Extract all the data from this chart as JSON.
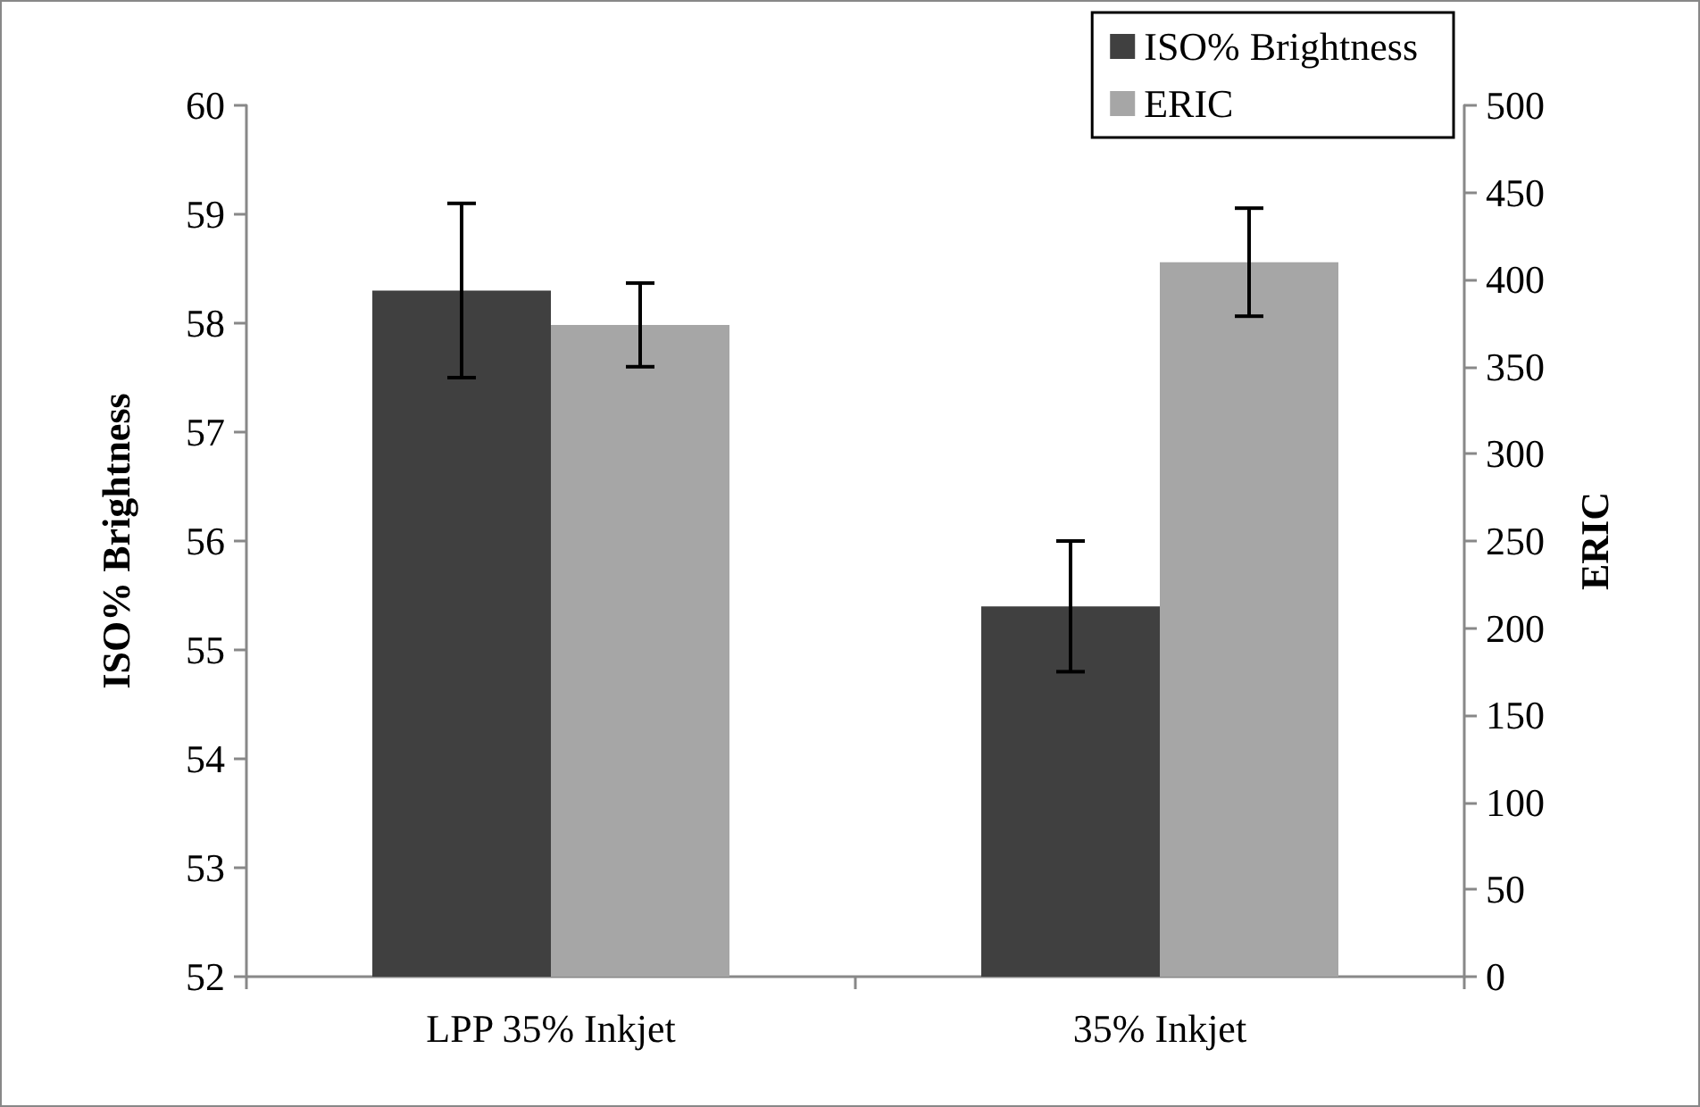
{
  "chart_data": {
    "type": "bar",
    "ylabel": "ISO% Brightness",
    "y2label": "ERIC",
    "categories": [
      "LPP 35% Inkjet",
      "35% Inkjet"
    ],
    "series": [
      {
        "name": "ISO% Brightness",
        "color": "#404040",
        "values": [
          58.3,
          55.4
        ],
        "errors": [
          0.8,
          0.6
        ]
      },
      {
        "name": "ERIC",
        "color": "#a6a6a6",
        "values": [
          374,
          410
        ],
        "errors": [
          24,
          31
        ],
        "axis": "y2"
      }
    ],
    "ylim": [
      52,
      60
    ],
    "yticks": [
      52,
      53,
      54,
      55,
      56,
      57,
      58,
      59,
      60
    ],
    "y2lim": [
      0,
      500
    ],
    "y2ticks": [
      0,
      50,
      100,
      150,
      200,
      250,
      300,
      350,
      400,
      450,
      500
    ],
    "grid": false,
    "legend": "top right"
  }
}
